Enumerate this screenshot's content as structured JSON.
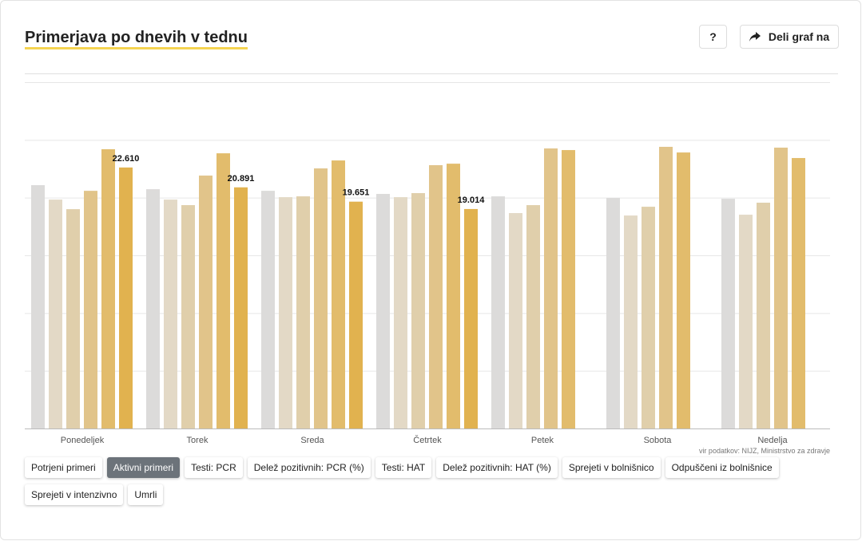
{
  "header": {
    "title": "Primerjava po dnevih v tednu",
    "help": "?",
    "share": "Deli graf na"
  },
  "chart_data": {
    "type": "bar",
    "categories": [
      "Ponedeljek",
      "Torek",
      "Sreda",
      "Četrtek",
      "Petek",
      "Sobota",
      "Nedelja"
    ],
    "series": [
      {
        "color": "#dcdbda",
        "values": [
          21080,
          20730,
          20590,
          20320,
          20110,
          19970,
          19900
        ]
      },
      {
        "color": "#e3d9c6",
        "values": [
          19830,
          19830,
          20040,
          20040,
          18660,
          18450,
          18520
        ]
      },
      {
        "color": "#e0cfab",
        "values": [
          19000,
          19350,
          20110,
          20390,
          19350,
          19210,
          19560
        ]
      },
      {
        "color": "#e1c48a",
        "values": [
          20590,
          21910,
          22530,
          22810,
          24260,
          24400,
          24330
        ]
      },
      {
        "color": "#e2bc6c",
        "values": [
          24190,
          23840,
          23220,
          22940,
          24120,
          23910,
          23430
        ]
      },
      {
        "color": "#e1b24f",
        "values": [
          22610,
          20891,
          19651,
          19014,
          null,
          null,
          null
        ],
        "value_labels": [
          "22.610",
          "20.891",
          "19.651",
          "19.014",
          null,
          null,
          null
        ]
      }
    ],
    "ylim": [
      0,
      30000
    ],
    "yticks": [
      0,
      5000,
      10000,
      15000,
      20000,
      25000,
      30000
    ],
    "grid": true,
    "source": "vir podatkov: NIJZ, Ministrstvo za zdravje"
  },
  "tabs": {
    "selected": 1,
    "items": [
      "Potrjeni primeri",
      "Aktivni primeri",
      "Testi: PCR",
      "Delež pozitivnih: PCR (%)",
      "Testi: HAT",
      "Delež pozitivnih: HAT (%)",
      "Sprejeti v bolnišnico",
      "Odpuščeni iz bolnišnice",
      "Sprejeti v intenzivno",
      "Umrli"
    ]
  }
}
